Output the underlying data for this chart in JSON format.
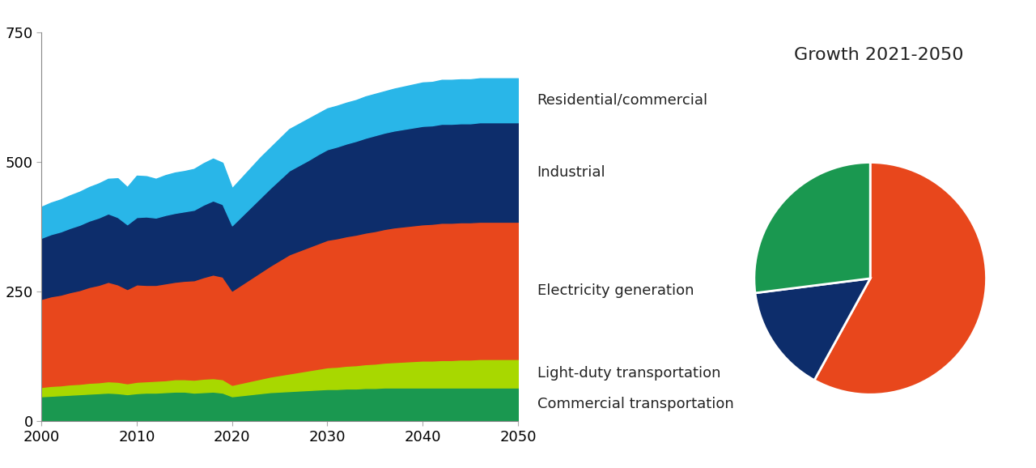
{
  "years": [
    2000,
    2001,
    2002,
    2003,
    2004,
    2005,
    2006,
    2007,
    2008,
    2009,
    2010,
    2011,
    2012,
    2013,
    2014,
    2015,
    2016,
    2017,
    2018,
    2019,
    2020,
    2021,
    2022,
    2023,
    2024,
    2025,
    2026,
    2027,
    2028,
    2029,
    2030,
    2031,
    2032,
    2033,
    2034,
    2035,
    2036,
    2037,
    2038,
    2039,
    2040,
    2041,
    2042,
    2043,
    2044,
    2045,
    2046,
    2047,
    2048,
    2049,
    2050
  ],
  "commercial_transport": [
    48,
    49,
    50,
    51,
    52,
    53,
    54,
    55,
    54,
    52,
    54,
    55,
    55,
    56,
    57,
    57,
    55,
    56,
    57,
    55,
    48,
    50,
    52,
    54,
    56,
    57,
    58,
    59,
    60,
    61,
    62,
    62,
    63,
    63,
    64,
    64,
    65,
    65,
    65,
    65,
    65,
    65,
    65,
    65,
    65,
    65,
    65,
    65,
    65,
    65,
    65
  ],
  "light_duty": [
    18,
    19,
    19,
    20,
    20,
    21,
    21,
    22,
    22,
    21,
    22,
    22,
    23,
    23,
    24,
    24,
    25,
    26,
    26,
    26,
    22,
    24,
    26,
    28,
    30,
    32,
    34,
    36,
    38,
    40,
    42,
    43,
    44,
    45,
    46,
    47,
    48,
    49,
    50,
    51,
    52,
    52,
    53,
    53,
    54,
    54,
    55,
    55,
    55,
    55,
    55
  ],
  "electricity_gen": [
    170,
    173,
    175,
    178,
    181,
    185,
    188,
    192,
    188,
    182,
    188,
    186,
    185,
    187,
    188,
    190,
    192,
    196,
    200,
    198,
    182,
    190,
    198,
    206,
    214,
    222,
    230,
    234,
    238,
    242,
    246,
    248,
    250,
    252,
    254,
    256,
    258,
    260,
    261,
    262,
    263,
    264,
    265,
    265,
    265,
    265,
    265,
    265,
    265,
    265,
    265
  ],
  "industrial": [
    118,
    120,
    122,
    124,
    126,
    128,
    130,
    132,
    130,
    125,
    130,
    132,
    130,
    132,
    133,
    134,
    136,
    140,
    143,
    140,
    126,
    132,
    138,
    144,
    150,
    156,
    162,
    165,
    168,
    172,
    175,
    177,
    179,
    181,
    183,
    185,
    186,
    187,
    188,
    189,
    190,
    190,
    191,
    191,
    191,
    191,
    192,
    192,
    192,
    192,
    192
  ],
  "residential_commercial": [
    60,
    61,
    62,
    63,
    64,
    65,
    66,
    67,
    75,
    72,
    80,
    78,
    75,
    77,
    78,
    78,
    79,
    80,
    81,
    80,
    72,
    74,
    76,
    78,
    78,
    79,
    80,
    80,
    80,
    79,
    79,
    79,
    79,
    79,
    80,
    80,
    80,
    81,
    82,
    83,
    84,
    84,
    85,
    85,
    85,
    85,
    85,
    85,
    85,
    85,
    85
  ],
  "colors": {
    "commercial_transport": "#1a9850",
    "light_duty": "#a8d800",
    "electricity_gen": "#e8471c",
    "industrial": "#0d2d6b",
    "residential_commercial": "#29b6e8"
  },
  "labels": {
    "residential_commercial": "Residential/commercial",
    "industrial": "Industrial",
    "electricity_gen": "Electricity generation",
    "light_duty": "Light-duty transportation",
    "commercial_transport": "Commercial transportation"
  },
  "ylim": [
    0,
    750
  ],
  "xlim": [
    2000,
    2050
  ],
  "yticks": [
    0,
    250,
    500,
    750
  ],
  "xticks": [
    2000,
    2010,
    2020,
    2030,
    2040,
    2050
  ],
  "pie_title": "Growth 2021-2050",
  "pie_values": [
    58,
    15,
    27
  ],
  "pie_colors": [
    "#e8471c",
    "#0d2d6b",
    "#1a9850"
  ],
  "pie_startangle": 90,
  "background_color": "#ffffff",
  "title_fontsize": 16,
  "label_fontsize": 13
}
